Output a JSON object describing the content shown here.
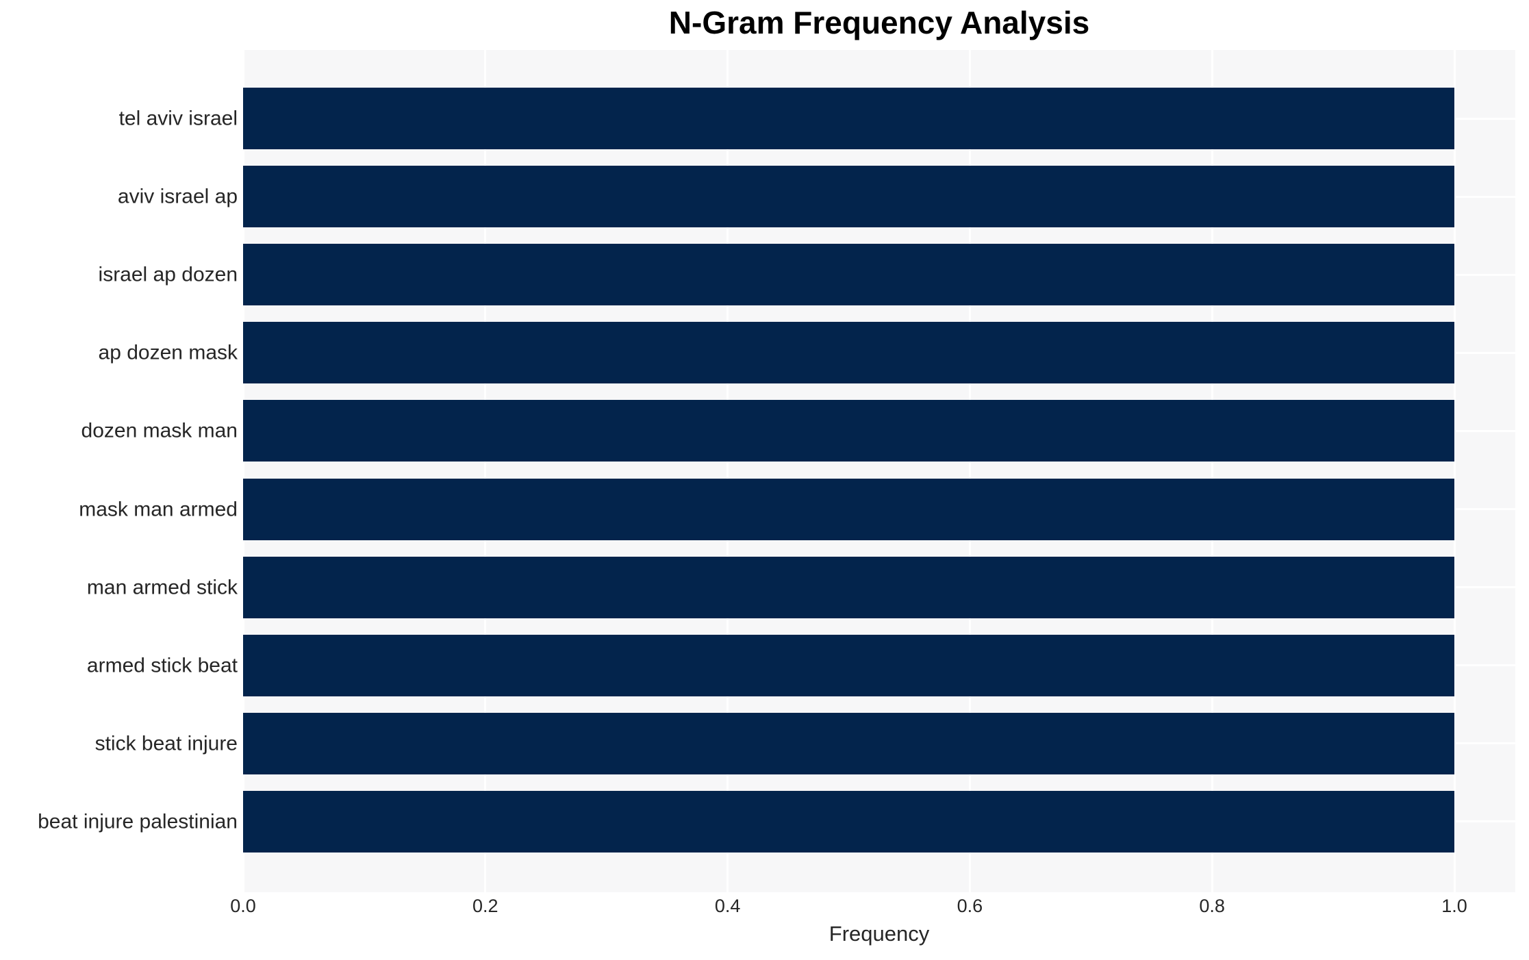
{
  "chart_data": {
    "type": "bar",
    "orientation": "horizontal",
    "title": "N-Gram Frequency Analysis",
    "xlabel": "Frequency",
    "ylabel": "",
    "categories": [
      "tel aviv israel",
      "aviv israel ap",
      "israel ap dozen",
      "ap dozen mask",
      "dozen mask man",
      "mask man armed",
      "man armed stick",
      "armed stick beat",
      "stick beat injure",
      "beat injure palestinian"
    ],
    "values": [
      1.0,
      1.0,
      1.0,
      1.0,
      1.0,
      1.0,
      1.0,
      1.0,
      1.0,
      1.0
    ],
    "xlim": [
      0.0,
      1.0
    ],
    "xticks": [
      "0.0",
      "0.2",
      "0.4",
      "0.6",
      "0.8",
      "1.0"
    ],
    "grid": true,
    "legend": null,
    "colors": {
      "bar": "#03244c",
      "plot_background": "#f7f7f8",
      "gridline": "#ffffff",
      "text": "#262626",
      "title": "#000000",
      "page_background": "#ffffff"
    }
  }
}
